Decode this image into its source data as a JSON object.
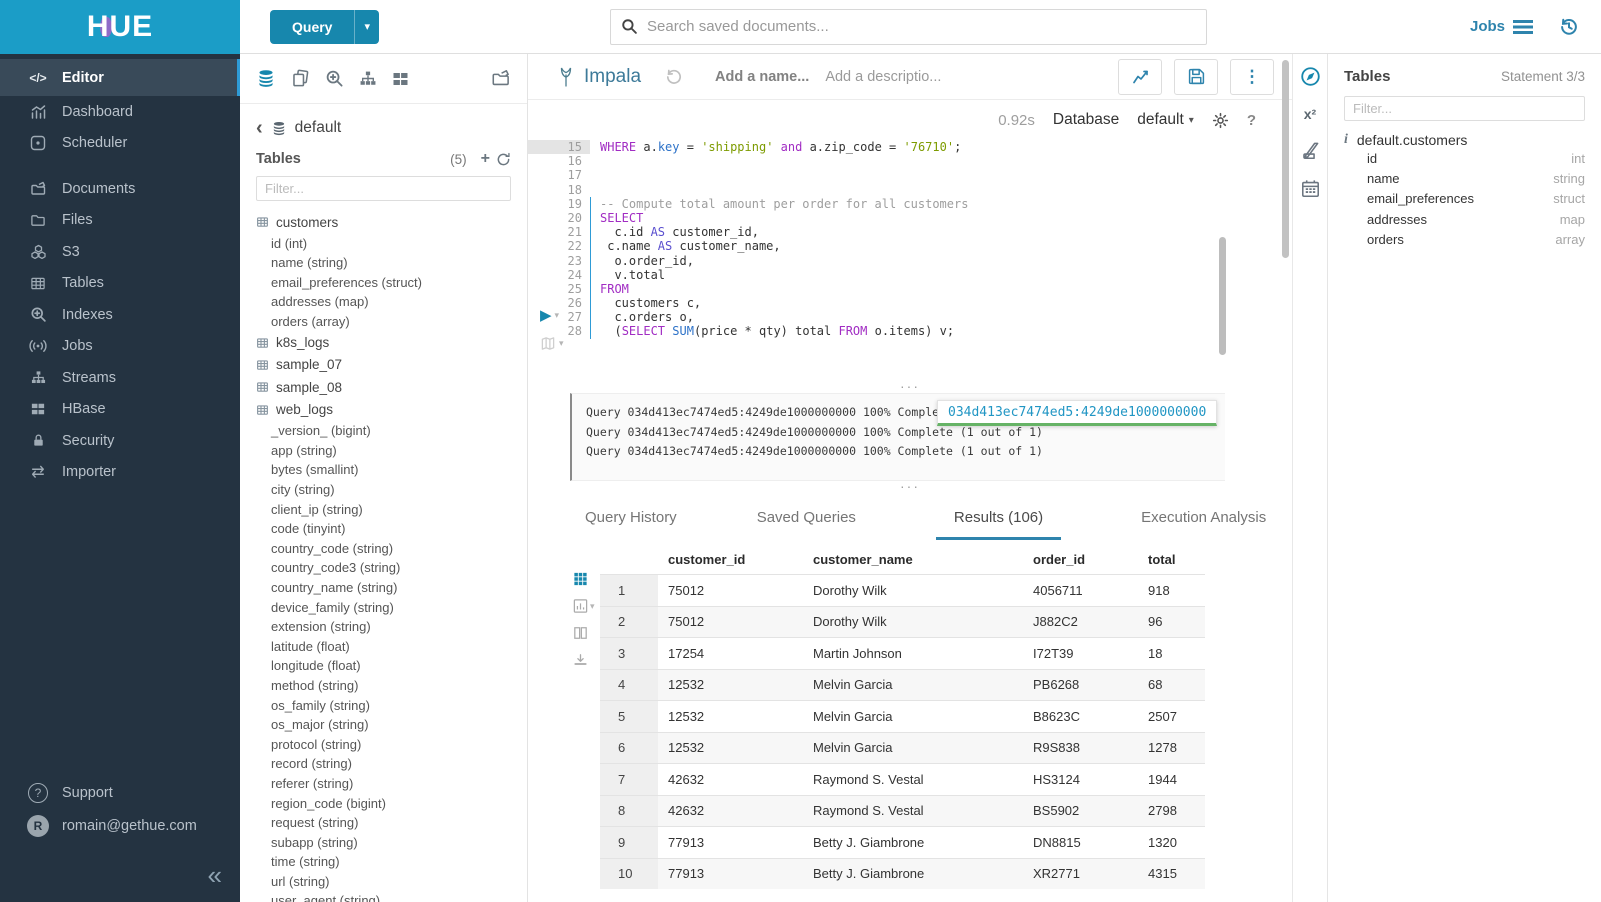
{
  "colors": {
    "brand_teal": "#1b9dc7",
    "primary_blue": "#1787ad",
    "accent_blue": "#2e84ad",
    "statement_blue": "#2e9bd6",
    "log_underline_green": "#66b366",
    "sidebar_bg": "#243341"
  },
  "icons": {
    "caret_down": "▾",
    "kebab": "⋮",
    "chevron_left": "‹",
    "collapse": "«",
    "play": "▶",
    "question": "?",
    "dots_handle": "···",
    "info": "i",
    "plus": "+",
    "superscript_x": "x²",
    "swap": "⇄",
    "code": "</>"
  },
  "topbar": {
    "logo_text": "HUE",
    "query_button": "Query",
    "search_placeholder": "Search saved documents...",
    "jobs_label": "Jobs"
  },
  "nav": {
    "editor": "Editor",
    "dashboard": "Dashboard",
    "scheduler": "Scheduler",
    "documents": "Documents",
    "files": "Files",
    "s3": "S3",
    "tables": "Tables",
    "indexes": "Indexes",
    "jobs": "Jobs",
    "streams": "Streams",
    "hbase": "HBase",
    "security": "Security",
    "importer": "Importer",
    "support": "Support",
    "user": "romain@gethue.com",
    "avatar_initial": "R"
  },
  "browser": {
    "database": "default",
    "tables_label": "Tables",
    "tables_count": "(5)",
    "filter_placeholder": "Filter...",
    "tree": [
      {
        "label": "customers",
        "kind": "table"
      },
      {
        "label": "id (int)",
        "kind": "column"
      },
      {
        "label": "name (string)",
        "kind": "column"
      },
      {
        "label": "email_preferences (struct)",
        "kind": "column"
      },
      {
        "label": "addresses (map)",
        "kind": "column"
      },
      {
        "label": "orders (array)",
        "kind": "column"
      },
      {
        "label": "k8s_logs",
        "kind": "table"
      },
      {
        "label": "sample_07",
        "kind": "table"
      },
      {
        "label": "sample_08",
        "kind": "table"
      },
      {
        "label": "web_logs",
        "kind": "table"
      },
      {
        "label": "_version_ (bigint)",
        "kind": "column"
      },
      {
        "label": "app (string)",
        "kind": "column"
      },
      {
        "label": "bytes (smallint)",
        "kind": "column"
      },
      {
        "label": "city (string)",
        "kind": "column"
      },
      {
        "label": "client_ip (string)",
        "kind": "column"
      },
      {
        "label": "code (tinyint)",
        "kind": "column"
      },
      {
        "label": "country_code (string)",
        "kind": "column"
      },
      {
        "label": "country_code3 (string)",
        "kind": "column"
      },
      {
        "label": "country_name (string)",
        "kind": "column"
      },
      {
        "label": "device_family (string)",
        "kind": "column"
      },
      {
        "label": "extension (string)",
        "kind": "column"
      },
      {
        "label": "latitude (float)",
        "kind": "column"
      },
      {
        "label": "longitude (float)",
        "kind": "column"
      },
      {
        "label": "method (string)",
        "kind": "column"
      },
      {
        "label": "os_family (string)",
        "kind": "column"
      },
      {
        "label": "os_major (string)",
        "kind": "column"
      },
      {
        "label": "protocol (string)",
        "kind": "column"
      },
      {
        "label": "record (string)",
        "kind": "column"
      },
      {
        "label": "referer (string)",
        "kind": "column"
      },
      {
        "label": "region_code (bigint)",
        "kind": "column"
      },
      {
        "label": "request (string)",
        "kind": "column"
      },
      {
        "label": "subapp (string)",
        "kind": "column"
      },
      {
        "label": "time (string)",
        "kind": "column"
      },
      {
        "label": "url (string)",
        "kind": "column"
      },
      {
        "label": "user_agent (string)",
        "kind": "column"
      }
    ]
  },
  "editor": {
    "engine": "Impala",
    "name_placeholder": "Add a name...",
    "description_placeholder": "Add a descriptio...",
    "exec_time": "0.92s",
    "database_label": "Database",
    "database_value": "default",
    "lines": [
      {
        "n": 15,
        "hl": true,
        "tokens": [
          [
            "kw",
            "WHERE"
          ],
          [
            "d",
            " a."
          ],
          [
            "fn",
            "key"
          ],
          [
            "d",
            " = "
          ],
          [
            "str",
            "'shipping'"
          ],
          [
            "kw",
            " and"
          ],
          [
            "d",
            " a.zip_code = "
          ],
          [
            "str",
            "'76710'"
          ],
          [
            "d",
            ";"
          ]
        ]
      },
      {
        "n": 16,
        "tokens": []
      },
      {
        "n": 17,
        "tokens": []
      },
      {
        "n": 18,
        "tokens": []
      },
      {
        "n": 19,
        "stmt": true,
        "tokens": [
          [
            "cm",
            "-- Compute total amount per order for all customers"
          ]
        ]
      },
      {
        "n": 20,
        "stmt": true,
        "tokens": [
          [
            "kw",
            "SELECT"
          ]
        ]
      },
      {
        "n": 21,
        "stmt": true,
        "tokens": [
          [
            "d",
            "  c.id "
          ],
          [
            "kw2",
            "AS"
          ],
          [
            "d",
            " customer_id,"
          ]
        ]
      },
      {
        "n": 22,
        "stmt": true,
        "tokens": [
          [
            "d",
            " c.name "
          ],
          [
            "kw2",
            "AS"
          ],
          [
            "d",
            " customer_name,"
          ]
        ]
      },
      {
        "n": 23,
        "stmt": true,
        "tokens": [
          [
            "d",
            "  o.order_id,"
          ]
        ]
      },
      {
        "n": 24,
        "stmt": true,
        "tokens": [
          [
            "d",
            "  v.total"
          ]
        ]
      },
      {
        "n": 25,
        "stmt": true,
        "tokens": [
          [
            "kw",
            "FROM"
          ]
        ]
      },
      {
        "n": 26,
        "stmt": true,
        "tokens": [
          [
            "d",
            "  customers c,"
          ]
        ]
      },
      {
        "n": 27,
        "stmt": true,
        "tokens": [
          [
            "d",
            "  c.orders o,"
          ]
        ]
      },
      {
        "n": 28,
        "stmt": true,
        "tokens": [
          [
            "d",
            "  ("
          ],
          [
            "kw",
            "SELECT"
          ],
          [
            "d",
            " "
          ],
          [
            "fn",
            "SUM"
          ],
          [
            "d",
            "(price * qty) total "
          ],
          [
            "kw",
            "FROM"
          ],
          [
            "d",
            " o.items) v;"
          ]
        ]
      }
    ]
  },
  "log": {
    "lines": [
      "Query 034d413ec7474ed5:4249de1000000000 100% Complete (1 out of 1)",
      "Query 034d413ec7474ed5:4249de1000000000 100% Complete (1 out of 1)",
      "Query 034d413ec7474ed5:4249de1000000000 100% Complete (1 out of 1)"
    ],
    "overlay_id": "034d413ec7474ed5:4249de1000000000"
  },
  "tabs": [
    {
      "label": "Query History"
    },
    {
      "label": "Saved Queries"
    },
    {
      "label": "Results (106)",
      "active": true
    },
    {
      "label": "Execution Analysis"
    }
  ],
  "results": {
    "columns": [
      "customer_id",
      "customer_name",
      "order_id",
      "total"
    ],
    "rows": [
      {
        "n": "1",
        "cid": "75012",
        "cname": "Dorothy Wilk",
        "oid": "4056711",
        "total": "918"
      },
      {
        "n": "2",
        "cid": "75012",
        "cname": "Dorothy Wilk",
        "oid": "J882C2",
        "total": "96"
      },
      {
        "n": "3",
        "cid": "17254",
        "cname": "Martin Johnson",
        "oid": "I72T39",
        "total": "18"
      },
      {
        "n": "4",
        "cid": "12532",
        "cname": "Melvin Garcia",
        "oid": "PB6268",
        "total": "68"
      },
      {
        "n": "5",
        "cid": "12532",
        "cname": "Melvin Garcia",
        "oid": "B8623C",
        "total": "2507"
      },
      {
        "n": "6",
        "cid": "12532",
        "cname": "Melvin Garcia",
        "oid": "R9S838",
        "total": "1278"
      },
      {
        "n": "7",
        "cid": "42632",
        "cname": "Raymond S. Vestal",
        "oid": "HS3124",
        "total": "1944"
      },
      {
        "n": "8",
        "cid": "42632",
        "cname": "Raymond S. Vestal",
        "oid": "BS5902",
        "total": "2798"
      },
      {
        "n": "9",
        "cid": "77913",
        "cname": "Betty J. Giambrone",
        "oid": "DN8815",
        "total": "1320"
      },
      {
        "n": "10",
        "cid": "77913",
        "cname": "Betty J. Giambrone",
        "oid": "XR2771",
        "total": "4315"
      }
    ]
  },
  "rightpanel": {
    "title": "Tables",
    "statement": "Statement 3/3",
    "filter_placeholder": "Filter...",
    "table_name": "default.customers",
    "columns": [
      {
        "name": "id",
        "type": "int"
      },
      {
        "name": "name",
        "type": "string"
      },
      {
        "name": "email_preferences",
        "type": "struct"
      },
      {
        "name": "addresses",
        "type": "map"
      },
      {
        "name": "orders",
        "type": "array"
      }
    ]
  }
}
